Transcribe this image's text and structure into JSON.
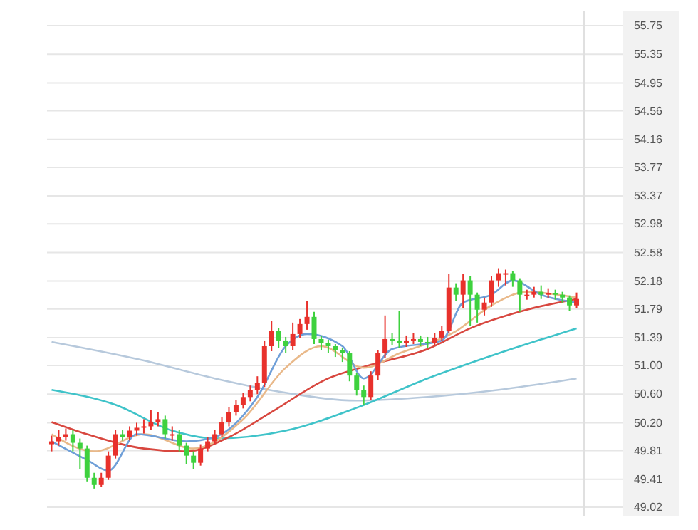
{
  "chart_data": {
    "type": "candlestick",
    "categories": [
      null,
      null,
      null,
      null,
      null,
      null,
      null,
      null,
      null,
      null,
      null,
      null,
      null,
      null,
      null,
      null,
      null,
      null,
      null,
      null,
      null,
      null,
      null,
      null,
      null,
      null,
      null,
      null,
      null,
      null,
      null,
      null,
      null,
      null,
      null,
      null,
      null,
      null,
      null,
      null,
      null,
      null,
      null,
      null,
      null,
      null,
      null,
      null,
      null,
      null,
      null,
      null,
      null,
      null,
      null,
      null,
      null,
      null,
      null,
      null,
      null,
      null,
      null,
      null,
      null,
      null,
      null,
      null,
      null,
      null,
      null,
      null,
      null,
      null,
      null
    ],
    "ohlc": [
      [
        49.9,
        50.02,
        49.8,
        49.94
      ],
      [
        49.94,
        50.1,
        49.88,
        50.0
      ],
      [
        50.0,
        50.12,
        49.95,
        50.04
      ],
      [
        50.04,
        50.1,
        49.8,
        49.92
      ],
      [
        49.92,
        49.98,
        49.55,
        49.84
      ],
      [
        49.84,
        49.88,
        49.38,
        49.43
      ],
      [
        49.43,
        49.5,
        49.28,
        49.33
      ],
      [
        49.33,
        49.5,
        49.3,
        49.43
      ],
      [
        49.43,
        49.8,
        49.4,
        49.74
      ],
      [
        49.74,
        50.1,
        49.7,
        50.04
      ],
      [
        50.04,
        50.1,
        49.95,
        50.0
      ],
      [
        50.0,
        50.15,
        49.95,
        50.09
      ],
      [
        50.09,
        50.2,
        50.02,
        50.13
      ],
      [
        50.13,
        50.25,
        50.05,
        50.15
      ],
      [
        50.15,
        50.38,
        50.1,
        50.21
      ],
      [
        50.21,
        50.35,
        50.15,
        50.25
      ],
      [
        50.25,
        50.3,
        49.98,
        50.04
      ],
      [
        50.04,
        50.15,
        49.95,
        50.04
      ],
      [
        50.04,
        50.1,
        49.8,
        49.88
      ],
      [
        49.88,
        49.92,
        49.62,
        49.74
      ],
      [
        49.74,
        49.8,
        49.55,
        49.64
      ],
      [
        49.64,
        49.9,
        49.6,
        49.84
      ],
      [
        49.84,
        50.0,
        49.8,
        49.94
      ],
      [
        49.94,
        50.1,
        49.9,
        50.04
      ],
      [
        50.04,
        50.28,
        50.0,
        50.21
      ],
      [
        50.21,
        50.42,
        50.15,
        50.35
      ],
      [
        50.35,
        50.52,
        50.3,
        50.45
      ],
      [
        50.45,
        50.62,
        50.4,
        50.56
      ],
      [
        50.56,
        50.72,
        50.5,
        50.66
      ],
      [
        50.66,
        50.85,
        50.6,
        50.76
      ],
      [
        50.76,
        51.35,
        50.7,
        51.27
      ],
      [
        51.27,
        51.62,
        51.2,
        51.48
      ],
      [
        51.48,
        51.52,
        51.25,
        51.35
      ],
      [
        51.35,
        51.4,
        51.18,
        51.27
      ],
      [
        51.27,
        51.6,
        51.22,
        51.44
      ],
      [
        51.44,
        51.65,
        51.38,
        51.58
      ],
      [
        51.58,
        51.9,
        51.5,
        51.68
      ],
      [
        51.68,
        51.75,
        51.3,
        51.37
      ],
      [
        51.37,
        51.42,
        51.22,
        51.31
      ],
      [
        51.31,
        51.36,
        51.18,
        51.27
      ],
      [
        51.27,
        51.3,
        51.12,
        51.21
      ],
      [
        51.21,
        51.25,
        51.05,
        51.17
      ],
      [
        51.17,
        51.2,
        50.78,
        50.86
      ],
      [
        50.86,
        50.9,
        50.58,
        50.66
      ],
      [
        50.66,
        50.72,
        50.45,
        50.56
      ],
      [
        50.56,
        50.92,
        50.52,
        50.86
      ],
      [
        50.86,
        51.22,
        50.8,
        51.17
      ],
      [
        51.17,
        51.7,
        51.1,
        51.37
      ],
      [
        51.37,
        51.45,
        51.28,
        51.35
      ],
      [
        51.35,
        51.76,
        51.25,
        51.31
      ],
      [
        51.31,
        51.42,
        51.26,
        51.35
      ],
      [
        51.35,
        51.45,
        51.3,
        51.37
      ],
      [
        51.37,
        51.42,
        51.27,
        51.33
      ],
      [
        51.33,
        51.4,
        51.25,
        51.31
      ],
      [
        51.31,
        51.45,
        51.28,
        51.39
      ],
      [
        51.39,
        51.55,
        51.35,
        51.48
      ],
      [
        51.48,
        52.28,
        51.45,
        52.09
      ],
      [
        52.09,
        52.15,
        51.9,
        51.99
      ],
      [
        51.99,
        52.28,
        51.8,
        52.19
      ],
      [
        52.19,
        52.25,
        51.55,
        51.99
      ],
      [
        51.99,
        52.02,
        51.6,
        51.78
      ],
      [
        51.78,
        51.95,
        51.7,
        51.88
      ],
      [
        51.88,
        52.25,
        51.82,
        52.19
      ],
      [
        52.19,
        52.36,
        52.1,
        52.29
      ],
      [
        52.29,
        52.34,
        52.12,
        52.29
      ],
      [
        52.29,
        52.32,
        52.1,
        52.19
      ],
      [
        52.19,
        52.22,
        51.75,
        51.99
      ],
      [
        51.99,
        52.06,
        51.92,
        51.99
      ],
      [
        51.99,
        52.1,
        51.95,
        52.03
      ],
      [
        52.03,
        52.12,
        51.93,
        51.99
      ],
      [
        51.99,
        52.08,
        51.94,
        52.01
      ],
      [
        52.01,
        52.06,
        51.92,
        51.99
      ],
      [
        51.99,
        52.03,
        51.88,
        51.95
      ],
      [
        51.95,
        51.98,
        51.76,
        51.84
      ],
      [
        51.84,
        52.02,
        51.8,
        51.93
      ]
    ],
    "series": [
      {
        "type": "line",
        "color": "#b7c9dc",
        "values": [
          51.33,
          null,
          null,
          null,
          null,
          null,
          null,
          null,
          null,
          null,
          null,
          null,
          null,
          51.07,
          null,
          null,
          null,
          null,
          null,
          null,
          null,
          null,
          null,
          50.82,
          null,
          null,
          null,
          null,
          null,
          null,
          null,
          null,
          null,
          50.62,
          null,
          null,
          null,
          null,
          null,
          null,
          null,
          null,
          null,
          50.51,
          null,
          null,
          null,
          null,
          null,
          null,
          null,
          null,
          null,
          50.56,
          null,
          null,
          null,
          null,
          null,
          null,
          null,
          null,
          null,
          50.66,
          null,
          null,
          null,
          null,
          null,
          null,
          null,
          null,
          null,
          null,
          50.82
        ]
      },
      {
        "type": "line",
        "color": "#3fc3c9",
        "values": [
          50.66,
          null,
          null,
          null,
          null,
          null,
          null,
          null,
          null,
          50.45,
          null,
          null,
          null,
          null,
          null,
          null,
          null,
          50.09,
          null,
          null,
          null,
          null,
          null,
          49.98,
          null,
          null,
          null,
          null,
          null,
          null,
          null,
          null,
          null,
          50.09,
          null,
          null,
          null,
          null,
          null,
          null,
          null,
          null,
          null,
          50.41,
          null,
          null,
          null,
          null,
          null,
          null,
          null,
          null,
          null,
          50.82,
          null,
          null,
          null,
          null,
          null,
          null,
          null,
          null,
          null,
          51.17,
          null,
          null,
          null,
          null,
          null,
          null,
          null,
          null,
          null,
          null,
          51.52
        ]
      },
      {
        "type": "line",
        "color": "#d8473f",
        "values": [
          50.21,
          null,
          null,
          null,
          null,
          50.04,
          null,
          null,
          null,
          null,
          null,
          null,
          null,
          49.84,
          null,
          null,
          null,
          null,
          null,
          49.8,
          null,
          null,
          null,
          null,
          null,
          50.0,
          null,
          null,
          null,
          null,
          null,
          50.35,
          null,
          null,
          null,
          null,
          null,
          null,
          null,
          50.82,
          null,
          null,
          null,
          null,
          null,
          51.01,
          null,
          null,
          null,
          null,
          null,
          null,
          null,
          51.23,
          null,
          null,
          null,
          null,
          null,
          51.52,
          null,
          null,
          null,
          null,
          null,
          null,
          null,
          51.78,
          null,
          null,
          null,
          null,
          null,
          null,
          51.93
        ]
      },
      {
        "type": "line",
        "color": "#e9b98a",
        "values": [
          50.04,
          null,
          null,
          null,
          null,
          null,
          49.8,
          null,
          null,
          null,
          null,
          null,
          null,
          50.04,
          null,
          null,
          null,
          null,
          null,
          null,
          49.84,
          null,
          null,
          null,
          null,
          null,
          null,
          50.25,
          null,
          null,
          null,
          null,
          null,
          50.97,
          null,
          null,
          null,
          null,
          51.27,
          null,
          null,
          null,
          null,
          null,
          50.97,
          null,
          null,
          null,
          null,
          51.17,
          null,
          null,
          null,
          null,
          null,
          null,
          null,
          51.48,
          null,
          null,
          null,
          null,
          51.84,
          null,
          null,
          null,
          null,
          52.03,
          null,
          null,
          null,
          null,
          null,
          null,
          51.95
        ]
      },
      {
        "type": "line",
        "color": "#6f9fd8",
        "values": [
          49.94,
          null,
          null,
          null,
          null,
          49.68,
          null,
          null,
          49.53,
          null,
          null,
          null,
          50.04,
          null,
          null,
          null,
          null,
          null,
          null,
          49.94,
          null,
          null,
          null,
          50.0,
          null,
          null,
          null,
          null,
          null,
          50.56,
          null,
          null,
          null,
          51.27,
          null,
          null,
          51.44,
          null,
          null,
          null,
          null,
          51.27,
          null,
          null,
          50.82,
          null,
          null,
          null,
          51.23,
          null,
          null,
          null,
          null,
          null,
          null,
          51.35,
          null,
          null,
          51.88,
          null,
          null,
          null,
          51.99,
          null,
          null,
          52.19,
          null,
          null,
          null,
          51.99,
          null,
          null,
          null,
          null,
          51.88
        ]
      }
    ],
    "ylim": [
      48.9,
      55.95
    ],
    "yticks": [
      {
        "value": 49.02,
        "label": "49.02"
      },
      49.41,
      49.81,
      {
        "value": 50.2,
        "label": "50.20"
      },
      {
        "value": 50.6,
        "label": "50.60"
      },
      {
        "value": 51.0,
        "label": "51.00"
      },
      51.39,
      51.79,
      52.18,
      52.58,
      52.98,
      53.37,
      53.77,
      54.16,
      54.56,
      54.95,
      55.35,
      55.75
    ],
    "grid": "y",
    "tick_labels": "y"
  }
}
